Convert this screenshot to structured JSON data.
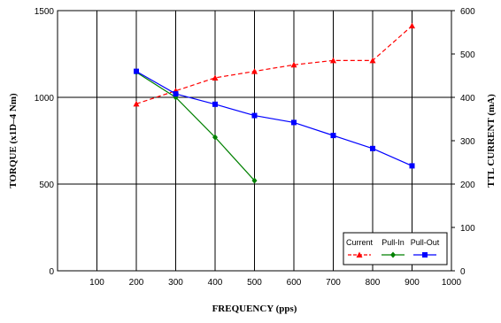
{
  "chart_data": {
    "type": "line",
    "xlabel": "FREQUENCY (pps)",
    "ylabel": "TORQUE (x1D–4 Nm)",
    "ylabel_right": "TTL CURRENT (mA)",
    "x_ticks": [
      100,
      200,
      300,
      400,
      500,
      600,
      700,
      800,
      900,
      1000
    ],
    "y_ticks": [
      0,
      500,
      1000,
      1500
    ],
    "y_right_ticks": [
      0,
      100,
      200,
      300,
      400,
      500,
      600
    ],
    "xlim": [
      0,
      1000
    ],
    "ylim": [
      0,
      1500
    ],
    "ylim_right": [
      0,
      600
    ],
    "grid": true,
    "legend_position": "bottom-right",
    "series": [
      {
        "name": "Current",
        "axis": "right",
        "color": "#ff0000",
        "line_style": "dashed",
        "marker": "triangle",
        "x": [
          200,
          300,
          400,
          500,
          600,
          700,
          800,
          900
        ],
        "y": [
          385,
          415,
          445,
          460,
          475,
          485,
          485,
          565
        ]
      },
      {
        "name": "Pull-In",
        "axis": "left",
        "color": "#008000",
        "line_style": "solid",
        "marker": "diamond",
        "x": [
          200,
          300,
          400,
          500
        ],
        "y": [
          1145,
          1000,
          770,
          520
        ]
      },
      {
        "name": "Pull-Out",
        "axis": "left",
        "color": "#0000ff",
        "line_style": "solid",
        "marker": "square",
        "x": [
          200,
          300,
          400,
          500,
          600,
          700,
          800,
          900
        ],
        "y": [
          1150,
          1020,
          960,
          895,
          855,
          780,
          705,
          605
        ]
      }
    ]
  }
}
